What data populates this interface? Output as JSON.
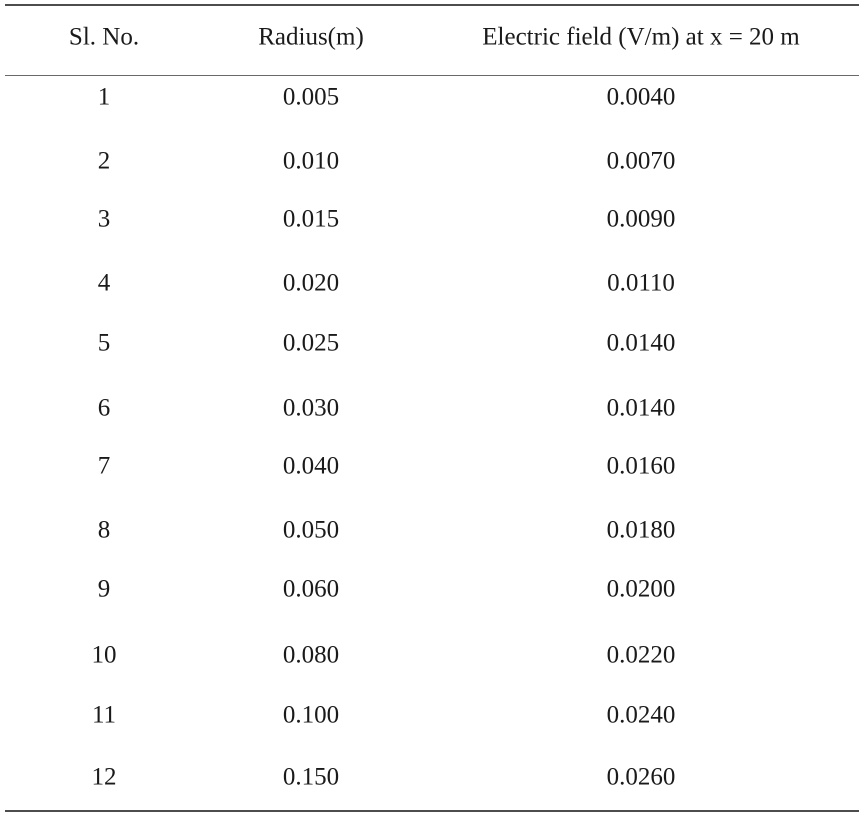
{
  "table": {
    "headers": [
      "Sl. No.",
      "Radius(m)",
      "Electric field (V/m) at x = 20 m"
    ],
    "rows": [
      [
        "1",
        "0.005",
        "0.0040"
      ],
      [
        "2",
        "0.010",
        "0.0070"
      ],
      [
        "3",
        "0.015",
        "0.0090"
      ],
      [
        "4",
        "0.020",
        "0.0110"
      ],
      [
        "5",
        "0.025",
        "0.0140"
      ],
      [
        "6",
        "0.030",
        "0.0140"
      ],
      [
        "7",
        "0.040",
        "0.0160"
      ],
      [
        "8",
        "0.050",
        "0.0180"
      ],
      [
        "9",
        "0.060",
        "0.0200"
      ],
      [
        "10",
        "0.080",
        "0.0220"
      ],
      [
        "11",
        "0.100",
        "0.0240"
      ],
      [
        "12",
        "0.150",
        "0.0260"
      ]
    ]
  }
}
